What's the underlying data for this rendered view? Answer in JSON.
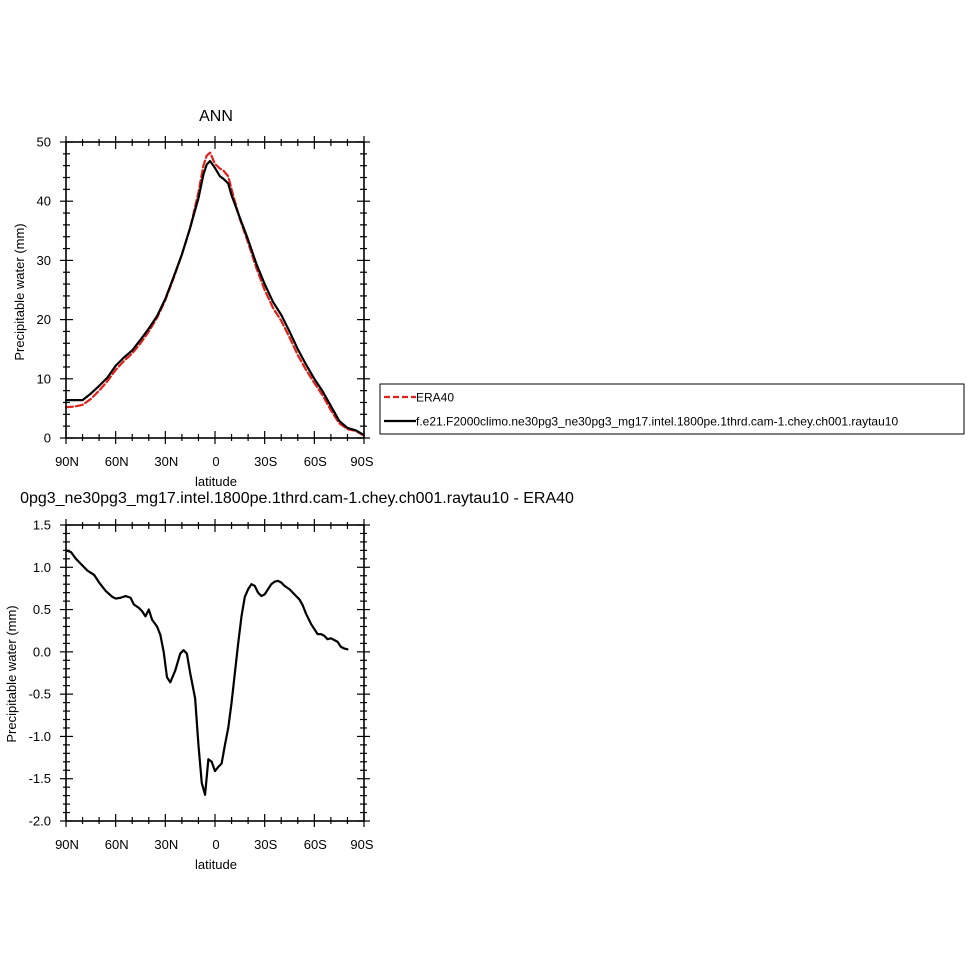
{
  "chart_data": [
    {
      "type": "line",
      "title": "ANN",
      "xlabel": "latitude",
      "ylabel": "Precipitable water (mm)",
      "xlim": [
        -90,
        90
      ],
      "ylim": [
        0,
        50
      ],
      "x_direction": "90N at left to 90S at right",
      "xticks": [
        -90,
        -60,
        -30,
        0,
        30,
        60,
        90
      ],
      "xtick_labels": [
        "90N",
        "60N",
        "30N",
        "0",
        "30S",
        "60S",
        "90S"
      ],
      "yticks": [
        0,
        10,
        20,
        30,
        40,
        50
      ],
      "ytick_labels": [
        "0",
        "10",
        "20",
        "30",
        "40",
        "50"
      ],
      "grid": false,
      "legend_position": "right",
      "series": [
        {
          "name": "ERA40",
          "color": "#e0201a",
          "dash": "dashed",
          "points": [
            [
              -90,
              5.2
            ],
            [
              -85,
              5.3
            ],
            [
              -80,
              5.6
            ],
            [
              -75,
              6.6
            ],
            [
              -70,
              8.0
            ],
            [
              -65,
              9.6
            ],
            [
              -60,
              11.5
            ],
            [
              -55,
              13.0
            ],
            [
              -50,
              14.3
            ],
            [
              -45,
              16.0
            ],
            [
              -40,
              18.0
            ],
            [
              -35,
              20.3
            ],
            [
              -30,
              23.3
            ],
            [
              -25,
              27.0
            ],
            [
              -20,
              31.0
            ],
            [
              -15,
              35.5
            ],
            [
              -10,
              41.5
            ],
            [
              -7,
              46.0
            ],
            [
              -5,
              47.7
            ],
            [
              -3,
              48.2
            ],
            [
              0,
              46.3
            ],
            [
              3,
              45.5
            ],
            [
              5,
              45.2
            ],
            [
              8,
              44.2
            ],
            [
              10,
              42.0
            ],
            [
              15,
              37.0
            ],
            [
              20,
              33.0
            ],
            [
              25,
              28.7
            ],
            [
              30,
              25.0
            ],
            [
              35,
              22.0
            ],
            [
              40,
              19.8
            ],
            [
              45,
              17.0
            ],
            [
              50,
              14.0
            ],
            [
              55,
              11.5
            ],
            [
              60,
              9.3
            ],
            [
              65,
              7.2
            ],
            [
              70,
              4.7
            ],
            [
              75,
              2.5
            ],
            [
              80,
              1.5
            ],
            [
              85,
              1.2
            ],
            [
              90,
              0.4
            ]
          ]
        },
        {
          "name": "f.e21.F2000climo.ne30pg3_ne30pg3_mg17.intel.1800pe.1thrd.cam-1.chey.ch001.raytau10",
          "color": "#000000",
          "dash": "solid",
          "points": [
            [
              -90,
              6.4
            ],
            [
              -85,
              6.4
            ],
            [
              -80,
              6.4
            ],
            [
              -75,
              7.5
            ],
            [
              -70,
              8.8
            ],
            [
              -65,
              10.2
            ],
            [
              -60,
              12.2
            ],
            [
              -55,
              13.6
            ],
            [
              -50,
              14.8
            ],
            [
              -45,
              16.6
            ],
            [
              -40,
              18.5
            ],
            [
              -35,
              20.6
            ],
            [
              -30,
              23.5
            ],
            [
              -25,
              27.2
            ],
            [
              -20,
              31.0
            ],
            [
              -15,
              35.5
            ],
            [
              -10,
              40.5
            ],
            [
              -7,
              44.5
            ],
            [
              -5,
              46.2
            ],
            [
              -3,
              46.8
            ],
            [
              0,
              45.6
            ],
            [
              3,
              44.2
            ],
            [
              5,
              43.8
            ],
            [
              8,
              43.0
            ],
            [
              10,
              41.0
            ],
            [
              15,
              37.2
            ],
            [
              20,
              33.5
            ],
            [
              25,
              29.4
            ],
            [
              30,
              26.0
            ],
            [
              35,
              23.0
            ],
            [
              40,
              20.8
            ],
            [
              45,
              18.0
            ],
            [
              50,
              15.0
            ],
            [
              55,
              12.4
            ],
            [
              60,
              10.0
            ],
            [
              65,
              7.9
            ],
            [
              70,
              5.4
            ],
            [
              75,
              2.9
            ],
            [
              80,
              1.7
            ],
            [
              85,
              1.3
            ],
            [
              90,
              0.5
            ]
          ]
        }
      ]
    },
    {
      "type": "line",
      "title": "0pg3_ne30pg3_mg17.intel.1800pe.1thrd.cam-1.chey.ch001.raytau10 - ERA40",
      "xlabel": "latitude",
      "ylabel": "Precipitable water (mm)",
      "xlim": [
        -90,
        90
      ],
      "ylim": [
        -2.0,
        1.5
      ],
      "x_direction": "90N at left to 90S at right",
      "xticks": [
        -90,
        -60,
        -30,
        0,
        30,
        60,
        90
      ],
      "xtick_labels": [
        "90N",
        "60N",
        "30N",
        "0",
        "30S",
        "60S",
        "90S"
      ],
      "yticks": [
        -2.0,
        -1.5,
        -1.0,
        -0.5,
        0.0,
        0.5,
        1.0,
        1.5
      ],
      "ytick_labels": [
        "-2.0",
        "-1.5",
        "-1.0",
        "-0.5",
        "0.0",
        "0.5",
        "1.0",
        "1.5"
      ],
      "grid": false,
      "series": [
        {
          "color": "#000000",
          "dash": "solid",
          "points": [
            [
              -90,
              1.2
            ],
            [
              -87,
              1.18
            ],
            [
              -84,
              1.1
            ],
            [
              -80,
              1.02
            ],
            [
              -77,
              0.96
            ],
            [
              -73,
              0.91
            ],
            [
              -70,
              0.82
            ],
            [
              -66,
              0.72
            ],
            [
              -62,
              0.65
            ],
            [
              -60,
              0.63
            ],
            [
              -57,
              0.64
            ],
            [
              -54,
              0.66
            ],
            [
              -51,
              0.64
            ],
            [
              -49,
              0.56
            ],
            [
              -46,
              0.52
            ],
            [
              -44,
              0.48
            ],
            [
              -42,
              0.42
            ],
            [
              -40,
              0.5
            ],
            [
              -38,
              0.38
            ],
            [
              -35,
              0.3
            ],
            [
              -33,
              0.2
            ],
            [
              -31,
              0.0
            ],
            [
              -29,
              -0.3
            ],
            [
              -27,
              -0.36
            ],
            [
              -24,
              -0.22
            ],
            [
              -21,
              -0.02
            ],
            [
              -19,
              0.02
            ],
            [
              -17,
              -0.02
            ],
            [
              -15,
              -0.25
            ],
            [
              -12,
              -0.55
            ],
            [
              -10,
              -1.1
            ],
            [
              -8,
              -1.55
            ],
            [
              -6,
              -1.69
            ],
            [
              -4,
              -1.27
            ],
            [
              -2,
              -1.3
            ],
            [
              0,
              -1.41
            ],
            [
              2,
              -1.36
            ],
            [
              4,
              -1.32
            ],
            [
              6,
              -1.1
            ],
            [
              8,
              -0.9
            ],
            [
              10,
              -0.6
            ],
            [
              12,
              -0.25
            ],
            [
              14,
              0.1
            ],
            [
              16,
              0.42
            ],
            [
              18,
              0.65
            ],
            [
              20,
              0.74
            ],
            [
              22,
              0.8
            ],
            [
              24,
              0.78
            ],
            [
              26,
              0.7
            ],
            [
              28,
              0.66
            ],
            [
              30,
              0.68
            ],
            [
              32,
              0.74
            ],
            [
              34,
              0.8
            ],
            [
              36,
              0.83
            ],
            [
              38,
              0.84
            ],
            [
              40,
              0.82
            ],
            [
              42,
              0.78
            ],
            [
              45,
              0.74
            ],
            [
              48,
              0.68
            ],
            [
              51,
              0.62
            ],
            [
              53,
              0.55
            ],
            [
              55,
              0.45
            ],
            [
              58,
              0.33
            ],
            [
              60,
              0.27
            ],
            [
              62,
              0.21
            ],
            [
              64,
              0.21
            ],
            [
              66,
              0.19
            ],
            [
              68,
              0.15
            ],
            [
              70,
              0.16
            ],
            [
              72,
              0.14
            ],
            [
              74,
              0.12
            ],
            [
              76,
              0.06
            ],
            [
              78,
              0.04
            ],
            [
              80,
              0.03
            ]
          ]
        }
      ]
    }
  ]
}
